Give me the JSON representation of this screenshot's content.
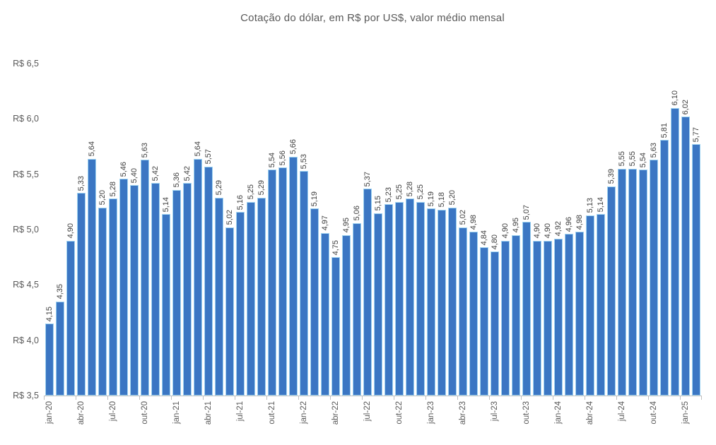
{
  "chart_data": {
    "type": "bar",
    "title": "Cotação do dólar, em R$ por US$, valor médio mensal",
    "x": [
      "jan-20",
      "fev-20",
      "mar-20",
      "abr-20",
      "mai-20",
      "jun-20",
      "jul-20",
      "ago-20",
      "set-20",
      "out-20",
      "nov-20",
      "dez-20",
      "jan-21",
      "fev-21",
      "mar-21",
      "abr-21",
      "mai-21",
      "jun-21",
      "jul-21",
      "ago-21",
      "set-21",
      "out-21",
      "nov-21",
      "dez-21",
      "jan-22",
      "fev-22",
      "mar-22",
      "abr-22",
      "mai-22",
      "jun-22",
      "jul-22",
      "ago-22",
      "set-22",
      "out-22",
      "nov-22",
      "dez-22",
      "jan-23",
      "fev-23",
      "mar-23",
      "abr-23",
      "mai-23",
      "jun-23",
      "jul-23",
      "ago-23",
      "set-23",
      "out-23",
      "nov-23",
      "dez-23",
      "jan-24",
      "fev-24",
      "mar-24",
      "abr-24",
      "mai-24",
      "jun-24",
      "jul-24",
      "ago-24",
      "set-24",
      "out-24",
      "nov-24",
      "dez-24",
      "jan-25",
      "fev-25"
    ],
    "values": [
      4.15,
      4.35,
      4.9,
      5.33,
      5.64,
      5.2,
      5.28,
      5.46,
      5.4,
      5.63,
      5.42,
      5.14,
      5.36,
      5.42,
      5.64,
      5.57,
      5.29,
      5.02,
      5.16,
      5.25,
      5.29,
      5.54,
      5.56,
      5.66,
      5.53,
      5.19,
      4.97,
      4.75,
      4.95,
      5.06,
      5.37,
      5.15,
      5.23,
      5.25,
      5.28,
      5.25,
      5.19,
      5.18,
      5.2,
      5.02,
      4.98,
      4.84,
      4.8,
      4.9,
      4.95,
      5.07,
      4.9,
      4.9,
      4.92,
      4.96,
      4.98,
      5.13,
      5.14,
      5.39,
      5.55,
      5.55,
      5.54,
      5.63,
      5.81,
      6.1,
      6.02,
      5.77
    ],
    "x_label_interval": 3,
    "y_ticks": [
      {
        "label": "R$ 6,5",
        "value": 6.5
      },
      {
        "label": "R$ 6,0",
        "value": 6.0
      },
      {
        "label": "R$ 5,5",
        "value": 5.5
      },
      {
        "label": "R$ 5,0",
        "value": 5.0
      },
      {
        "label": "R$ 4,5",
        "value": 4.5
      },
      {
        "label": "R$ 4,0",
        "value": 4.0
      },
      {
        "label": "R$ 3,5",
        "value": 3.5
      }
    ],
    "ylim": [
      3.5,
      6.5
    ],
    "xlabel": "",
    "ylabel": "",
    "grid": false,
    "legend": "none",
    "bar_color": "#3b76c3",
    "bar_border_color": "#9fd3f1",
    "value_label_color": "#3f3f3f",
    "axis_text_color": "#595959",
    "axis_line_color": "#bfbfbf"
  }
}
